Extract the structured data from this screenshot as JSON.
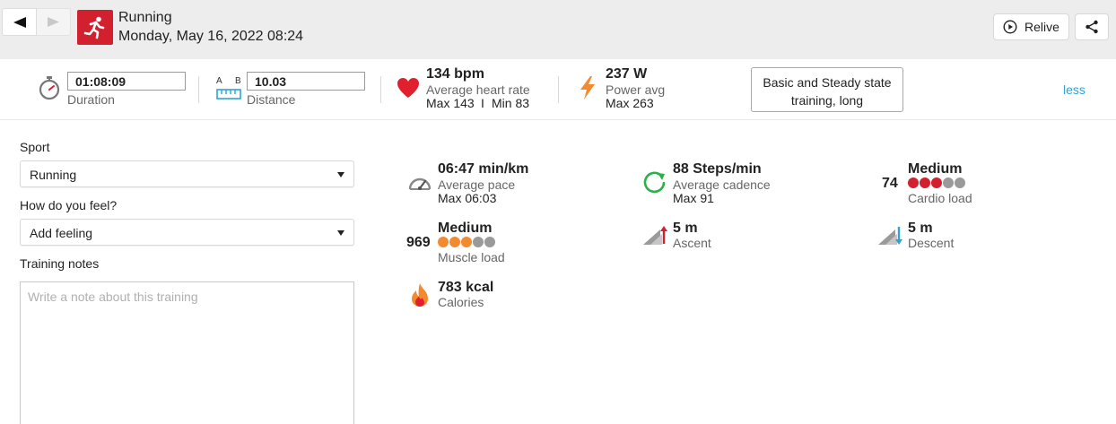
{
  "header": {
    "title": "Running",
    "date": "Monday, May 16, 2022 08:24",
    "relive_label": "Relive",
    "brand_color": "#d2202f"
  },
  "summary": {
    "duration": {
      "value": "01:08:09",
      "label": "Duration"
    },
    "distance": {
      "value": "10.03",
      "label": "Distance",
      "ab_a": "A",
      "ab_b": "B"
    },
    "heart_rate": {
      "value": "134 bpm",
      "label": "Average heart rate",
      "max_label": "Max 143",
      "divider": "I",
      "min_label": "Min 83"
    },
    "power": {
      "value": "237 W",
      "label": "Power avg",
      "max_label": "Max 263"
    },
    "training_type": {
      "line1": "Basic and Steady state",
      "line2": "training, long"
    },
    "less_label": "less"
  },
  "form": {
    "sport_label": "Sport",
    "sport_value": "Running",
    "feel_label": "How do you feel?",
    "feel_value": "Add feeling",
    "notes_label": "Training notes",
    "notes_placeholder": "Write a note about this training"
  },
  "metrics": {
    "pace": {
      "value": "06:47 min/km",
      "label": "Average pace",
      "max_label": "Max 06:03",
      "icon": "speedometer-icon"
    },
    "cadence": {
      "value": "88 Steps/min",
      "label": "Average cadence",
      "max_label": "Max 91",
      "icon": "cadence-icon"
    },
    "cardio": {
      "number": "74",
      "level": "Medium",
      "label": "Cardio load",
      "filled": 3,
      "total": 5,
      "fill_color": "#d2202f",
      "empty_color": "#9a9a9a"
    },
    "muscle": {
      "number": "969",
      "level": "Medium",
      "label": "Muscle load",
      "filled": 3,
      "total": 5,
      "fill_color": "#f28a30",
      "empty_color": "#9a9a9a"
    },
    "ascent": {
      "value": "5 m",
      "label": "Ascent",
      "icon": "ascent-icon"
    },
    "descent": {
      "value": "5 m",
      "label": "Descent",
      "icon": "descent-icon"
    },
    "calories": {
      "value": "783 kcal",
      "label": "Calories",
      "icon": "flame-icon"
    }
  },
  "colors": {
    "accent_blue": "#2ea3d6",
    "heart_red": "#e0202e",
    "power_orange": "#f28a30",
    "cadence_green": "#2bb04a"
  }
}
